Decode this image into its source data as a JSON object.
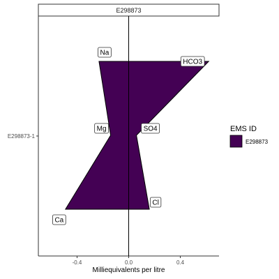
{
  "chart_data": {
    "type": "area",
    "subtype": "stiff-diagram",
    "facet_label": "E298873",
    "y_category": "E298873-1",
    "xlabel": "Milliequivalents per litre",
    "ylabel": "",
    "xlim": [
      -0.7,
      0.7
    ],
    "x_ticks": [
      {
        "value": -0.4,
        "label": "-0.4"
      },
      {
        "value": 0.0,
        "label": "0.0"
      },
      {
        "value": 0.4,
        "label": "0.4"
      }
    ],
    "ions": [
      {
        "name": "Na",
        "side": "cation",
        "value": -0.23,
        "level": 1
      },
      {
        "name": "HCO3",
        "side": "anion",
        "value": 0.62,
        "level": 1
      },
      {
        "name": "Mg",
        "side": "cation",
        "value": -0.14,
        "level": 2
      },
      {
        "name": "SO4",
        "side": "anion",
        "value": 0.06,
        "level": 2
      },
      {
        "name": "Ca",
        "side": "cation",
        "value": -0.49,
        "level": 3
      },
      {
        "name": "Cl",
        "side": "anion",
        "value": 0.16,
        "level": 3
      }
    ],
    "series": [
      {
        "name": "E298873",
        "color": "#440154"
      }
    ],
    "legend": {
      "title": "EMS ID",
      "position": "right",
      "items": [
        "E298873"
      ]
    },
    "grid": false
  }
}
